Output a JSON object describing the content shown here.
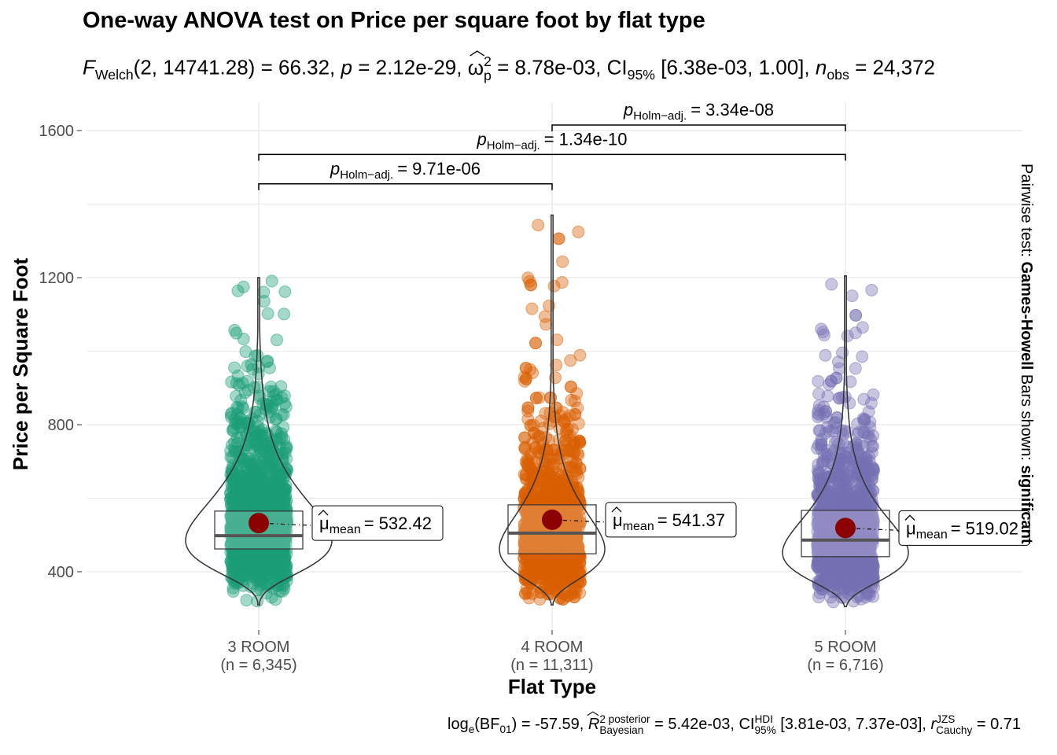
{
  "title": "One-way ANOVA test on Price per square foot by flat type",
  "subtitle": {
    "F_label": "F",
    "F_sub": "Welch",
    "F_args": "(2, 14741.28)",
    "F_value": "= 66.32,",
    "p_label": "p",
    "p_value": "= 2.12e-29,",
    "omega_label": "ω",
    "omega_sup": "2",
    "omega_sub": "p",
    "omega_value": "= 8.78e-03,",
    "ci_label": "CI",
    "ci_sub": "95%",
    "ci_value": "[6.38e-03, 1.00],",
    "n_label": "n",
    "n_sub": "obs",
    "n_value": "= 24,372"
  },
  "caption": {
    "bf_label": "log",
    "bf_sub": "e",
    "bf_arg": "(BF",
    "bf_arg_sub": "01",
    "bf_value": ") = -57.59,",
    "r2_label": "R",
    "r2_sup": "2 posterior",
    "r2_sub": "Bayesian",
    "r2_value": "= 5.42e-03,",
    "ci_label": "CI",
    "ci_sup": "HDI",
    "ci_sub": "95%",
    "ci_value": "[3.81e-03, 7.37e-03],",
    "r_label": "r",
    "r_sup": "JZS",
    "r_sub": "Cauchy",
    "r_value": "= 0.71"
  },
  "side_label": {
    "prefix": "Pairwise test: ",
    "test": "Games-Howell",
    "middle": " Bars shown: ",
    "shown": "significant"
  },
  "chart_data": {
    "type": "violin-box-jitter",
    "title": "One-way ANOVA test on Price per square foot by flat type",
    "xlabel": "Flat Type",
    "ylabel": "Price per Square Foot",
    "ylim": [
      270,
      1650
    ],
    "yticks": [
      400,
      800,
      1200,
      1600
    ],
    "grid": true,
    "groups": [
      {
        "name": "3 ROOM",
        "n_label": "(n = 6,345)",
        "color": "#1B9E77",
        "mean": 532.42,
        "mean_label": "= 532.42",
        "q1": 462,
        "median": 498,
        "q3": 565,
        "min": 310,
        "max": 1200,
        "mode": 485
      },
      {
        "name": "4 ROOM",
        "n_label": "(n = 11,311)",
        "color": "#D95F02",
        "mean": 541.37,
        "mean_label": "= 541.37",
        "q1": 449,
        "median": 505,
        "q3": 582,
        "min": 310,
        "max": 1370,
        "mode": 462
      },
      {
        "name": "5 ROOM",
        "n_label": "(n = 6,716)",
        "color": "#7570B3",
        "mean": 519.02,
        "mean_label": "= 519.02",
        "q1": 441,
        "median": 486,
        "q3": 567,
        "min": 305,
        "max": 1205,
        "mode": 452
      }
    ],
    "mean_symbol": "μ",
    "mean_sub": "mean",
    "pairwise": [
      {
        "from": 0,
        "to": 1,
        "level": 1455,
        "label_sub": "Holm−adj.",
        "label_value": "= 9.71e-06"
      },
      {
        "from": 0,
        "to": 2,
        "level": 1535,
        "label_sub": "Holm−adj.",
        "label_value": "= 1.34e-10"
      },
      {
        "from": 1,
        "to": 2,
        "level": 1615,
        "label_sub": "Holm−adj.",
        "label_value": "= 3.34e-08"
      }
    ],
    "pairwise_p_label": "p"
  }
}
